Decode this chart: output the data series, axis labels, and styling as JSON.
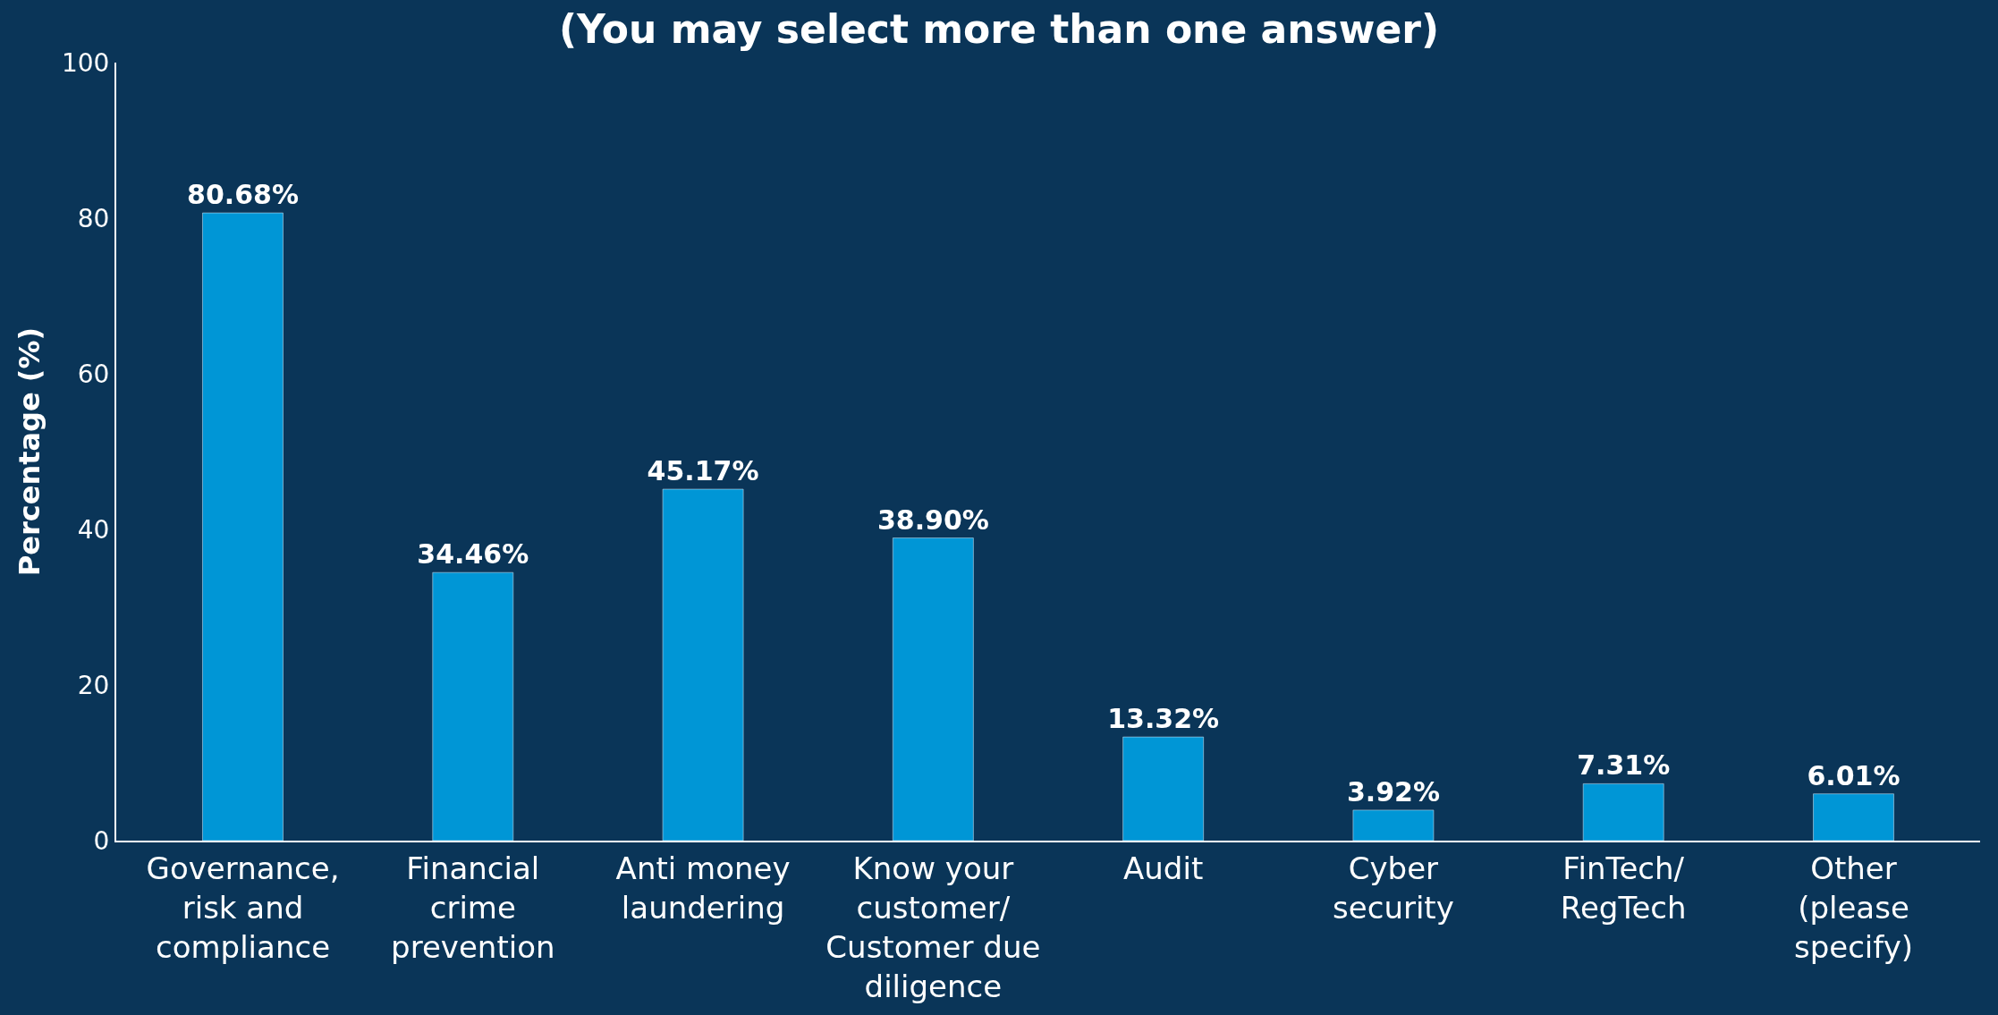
{
  "chart_data": {
    "type": "bar",
    "title": "(You may select more than one answer)",
    "ylabel": "Percentage (%)",
    "categories": [
      "Governance,\nrisk and\ncompliance",
      "Financial\ncrime\nprevention",
      "Anti money\nlaundering",
      "Know your\ncustomer/\nCustomer due\ndiligence",
      "Audit",
      "Cyber\nsecurity",
      "FinTech/\nRegTech",
      "Other\n(please\nspecify)"
    ],
    "values": [
      80.68,
      34.46,
      45.17,
      38.9,
      13.32,
      3.92,
      7.31,
      6.01
    ],
    "value_labels": [
      "80.68%",
      "34.46%",
      "45.17%",
      "38.90%",
      "13.32%",
      "3.92%",
      "7.31%",
      "6.01%"
    ],
    "color": "#0096d6",
    "ylim": [
      0,
      100
    ],
    "yticks": [
      0,
      20,
      40,
      60,
      80,
      100
    ],
    "grid": false,
    "legend": false
  }
}
